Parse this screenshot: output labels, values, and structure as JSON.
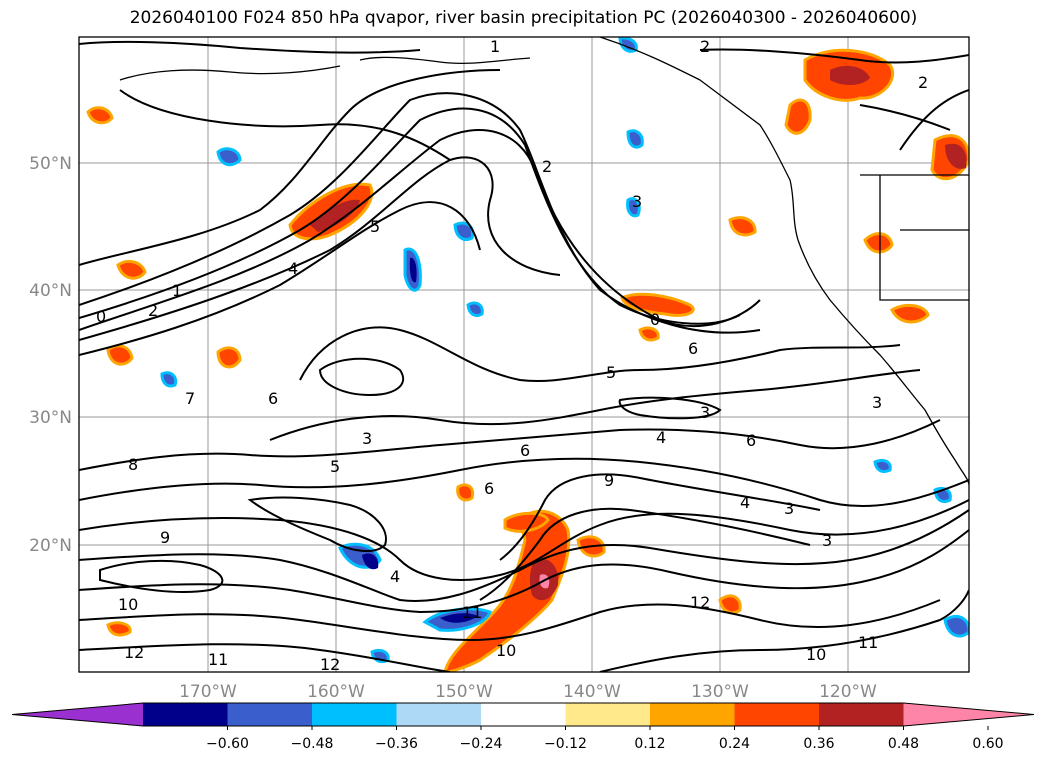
{
  "title": "2026040100 F024 850 hPa qvapor, river basin precipitation PC (2026040300 - 2026040600)",
  "map": {
    "lat_labels": [
      "50°N",
      "40°N",
      "30°N",
      "20°N"
    ],
    "lon_labels": [
      "170°W",
      "160°W",
      "150°W",
      "140°W",
      "130°W",
      "120°W"
    ],
    "contour_labels": [
      "1",
      "2",
      "2",
      "2",
      "5",
      "4",
      "1",
      "0",
      "2",
      "3",
      "0",
      "6",
      "5",
      "3",
      "4",
      "6",
      "6",
      "9",
      "4",
      "3",
      "3",
      "6",
      "5",
      "8",
      "9",
      "10",
      "12",
      "11",
      "12",
      "4",
      "10",
      "11",
      "12",
      "11",
      "10",
      "3",
      "7",
      "3",
      "6"
    ]
  },
  "colorbar": {
    "ticks": [
      "−0.60",
      "−0.48",
      "−0.36",
      "−0.24",
      "−0.12",
      "0.12",
      "0.24",
      "0.36",
      "0.48",
      "0.60"
    ],
    "colors": [
      "#9b30d0",
      "#00008b",
      "#3a5fcd",
      "#00bfff",
      "#add8f6",
      "#ffffff",
      "#ffe98a",
      "#ffa500",
      "#ff4500",
      "#b22222",
      "#ff85a8"
    ]
  }
}
